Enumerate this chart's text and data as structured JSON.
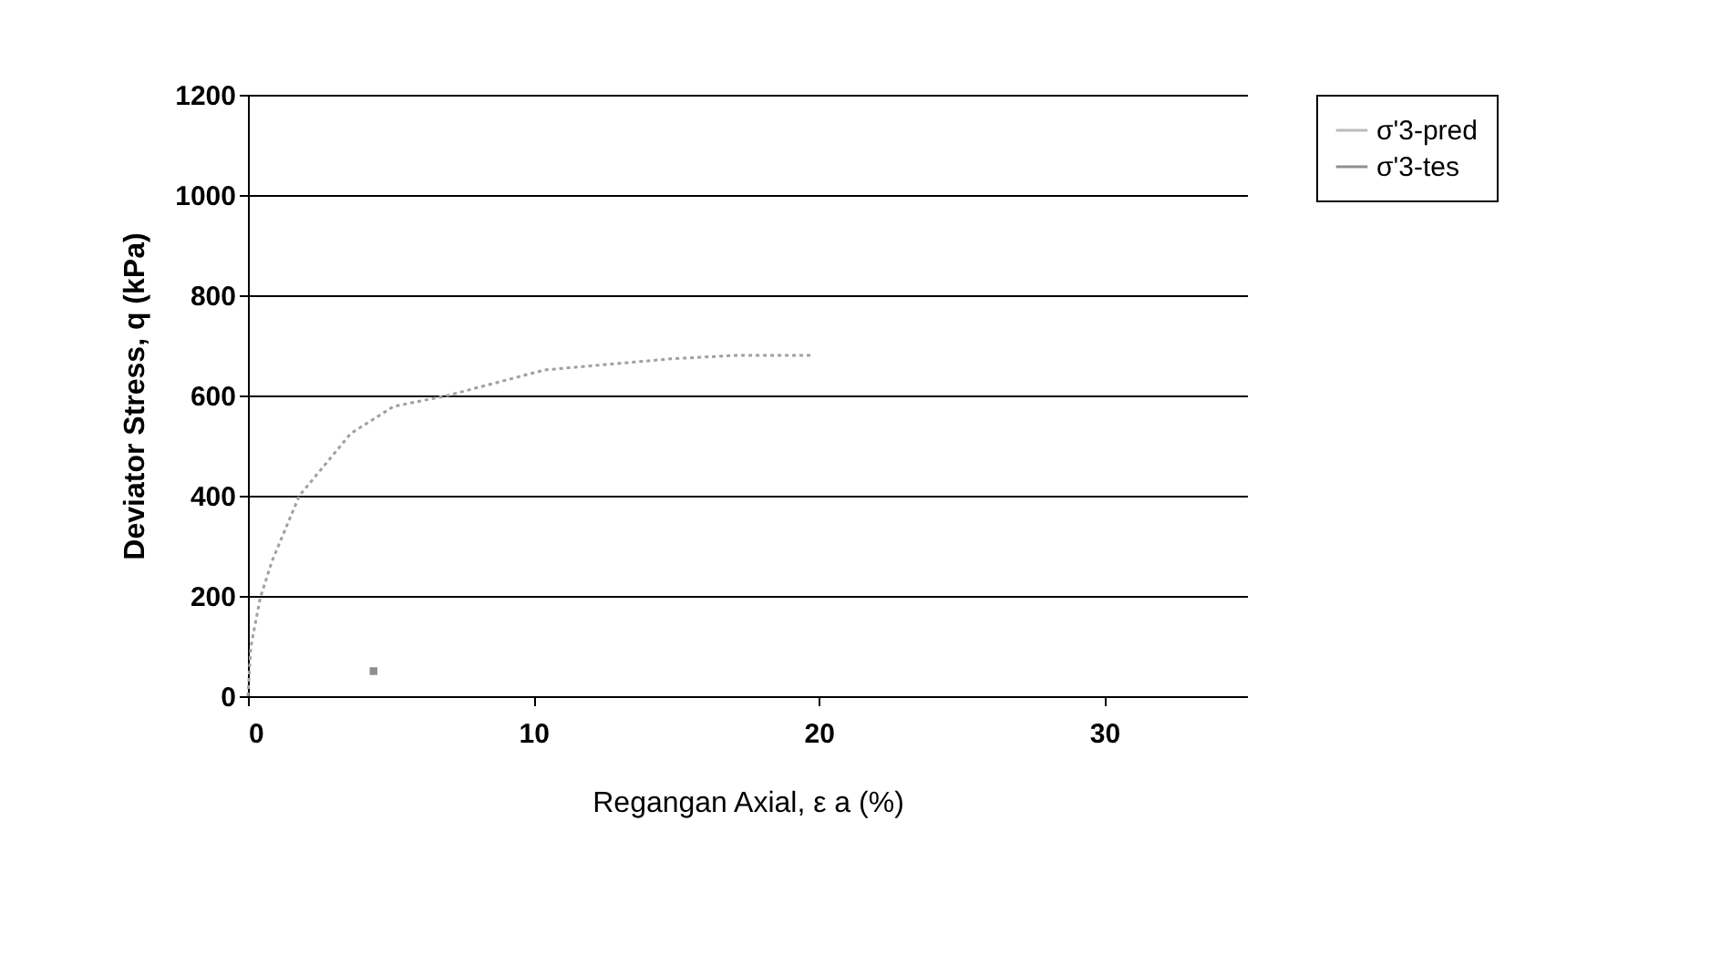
{
  "chart_data": {
    "type": "line",
    "xlabel": "Regangan Axial, ε a  (%)",
    "ylabel": "Deviator Stress,  q  (kPa)",
    "xlim": [
      0,
      35
    ],
    "xticks": [
      0,
      10,
      20,
      30
    ],
    "ylim": [
      0,
      1200
    ],
    "yticks": [
      0,
      200,
      400,
      600,
      800,
      1000,
      1200
    ],
    "grid": "y",
    "legend": "top right",
    "series": [
      {
        "name": "σ'3-pred",
        "type": "line",
        "color": "#a0a0a0",
        "line_style": "dotted",
        "x": [
          0,
          0.1,
          0.43,
          0.84,
          1.8,
          3.6,
          5.1,
          7,
          10.4,
          14.8,
          17.1,
          19.7
        ],
        "values": [
          0,
          98,
          196,
          269,
          400,
          524,
          578,
          600,
          651,
          673,
          680,
          680
        ]
      },
      {
        "name": "σ'3-tes",
        "type": "scatter",
        "color": "#606060",
        "marker": "square",
        "x": [
          4.4
        ],
        "values": [
          50
        ]
      }
    ]
  }
}
